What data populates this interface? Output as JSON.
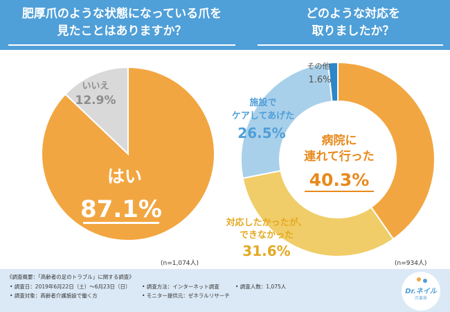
{
  "header": {
    "left_title_lines": [
      "肥厚爪のような状態になっている爪を",
      "見たことはありますか？"
    ],
    "right_title_lines": [
      "どのような対応を",
      "取りましたか？"
    ]
  },
  "chart_data": [
    {
      "type": "pie",
      "title": "肥厚爪のような状態になっている爪を見たことはありますか？",
      "categories": [
        "はい",
        "いいえ"
      ],
      "values": [
        87.1,
        12.9
      ],
      "colors": [
        "#f2a641",
        "#d9d9d9"
      ],
      "value_labels": [
        "87.1%",
        "12.9%"
      ],
      "n_label": "(n=1,074人)"
    },
    {
      "type": "pie",
      "title": "どのような対応を取りましたか？",
      "categories": [
        "病院に連れて行った",
        "対応したかったが、できなかった",
        "施設でケアしてあげた",
        "その他"
      ],
      "values": [
        40.3,
        31.6,
        26.5,
        1.6
      ],
      "colors": [
        "#f2a641",
        "#f0cd68",
        "#a9d0ea",
        "#2c86c8"
      ],
      "value_labels": [
        "40.3%",
        "31.6%",
        "26.5%",
        "1.6%"
      ],
      "n_label": "(n=934人)"
    }
  ],
  "labels": {
    "pie1": {
      "yes_name": "はい",
      "yes_pct": "87.1%",
      "no_name": "いいえ",
      "no_pct": "12.9%"
    },
    "donut": {
      "hospital_lines": [
        "病院に",
        "連れて行った"
      ],
      "hospital_pct": "40.3%",
      "care_lines": [
        "施設で",
        "ケアしてあげた"
      ],
      "care_pct": "26.5%",
      "cant_lines": [
        "対応したかったが、",
        "できなかった"
      ],
      "cant_pct": "31.6%",
      "other_name": "その他",
      "other_pct": "1.6%"
    }
  },
  "notes": {
    "left_n": "(n=1,074人)",
    "right_n": "(n=934人)"
  },
  "footer": {
    "title": "《調査概要：「高齢者の足のトラブル」に関する調査》",
    "items": [
      "• 調査日：2019年6月22日（土）～6月23日（日）",
      "• 調査方法：インターネット調査",
      "• 調査人数：1,075人",
      "• 調査対象：高齢者介護施設で働く方",
      "• モニター提供元：ゼネラルリサーチ"
    ],
    "logo_text": "Dr.ネイル",
    "logo_sub": "爪革命"
  },
  "colors": {
    "header": "#4f9fd8",
    "orange": "#f2a641",
    "orange_text": "#e8891d",
    "yellow": "#f0cd68",
    "yellow_text": "#e3a922",
    "blue_light": "#a9d0ea",
    "blue": "#2c86c8",
    "gray": "#d9d9d9",
    "gray_text": "#8c8c8c"
  }
}
